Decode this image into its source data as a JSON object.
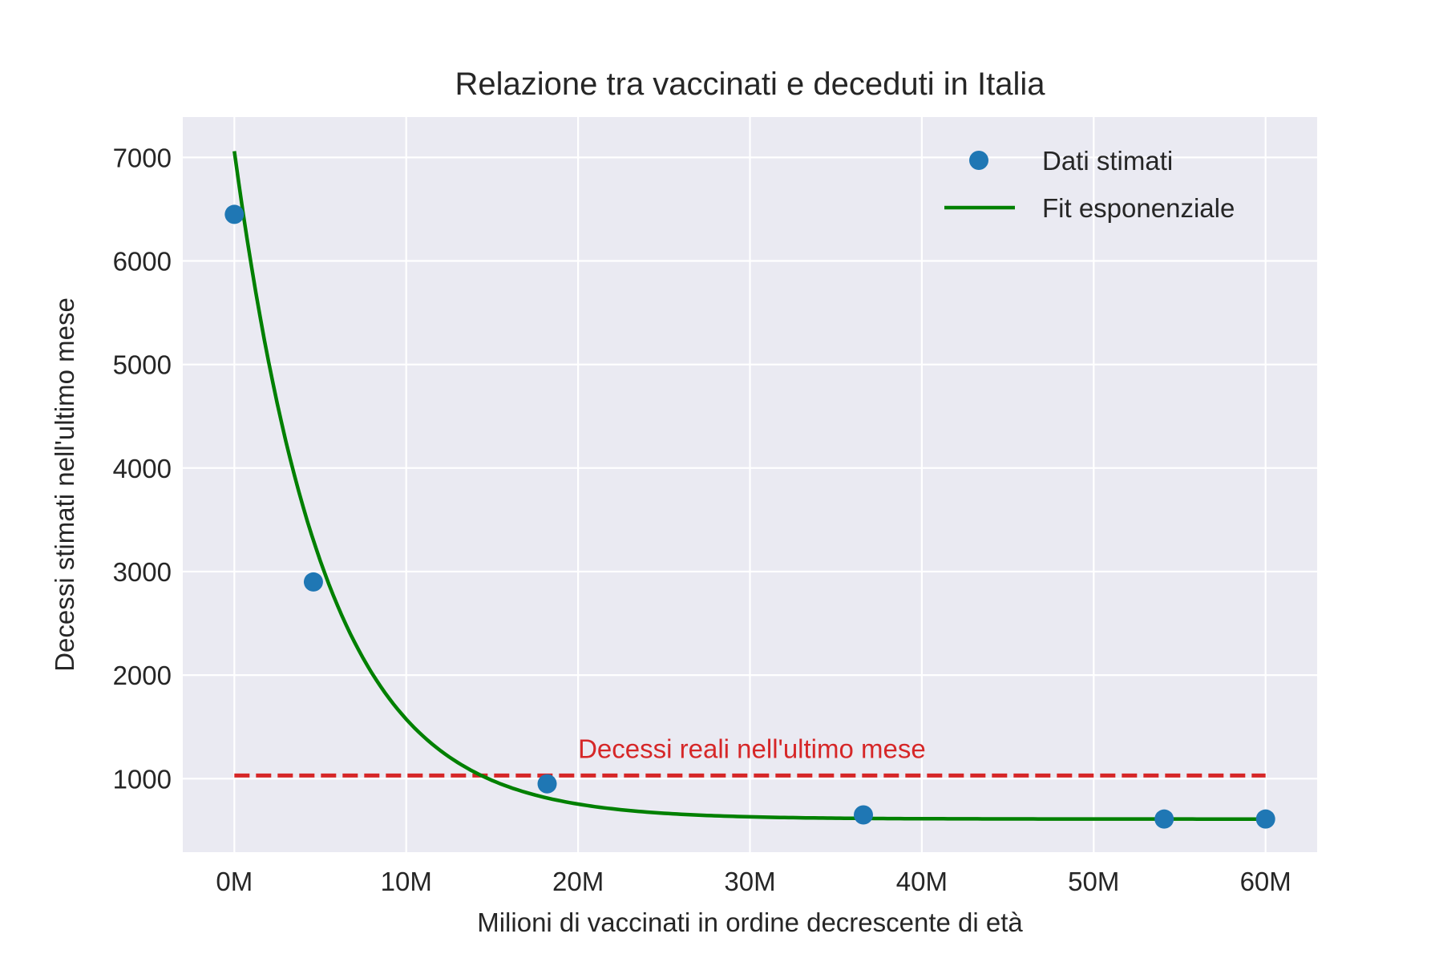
{
  "chart_data": {
    "type": "scatter",
    "title": "Relazione tra vaccinati e deceduti in Italia",
    "xlabel": "Milioni di vaccinati in ordine decrescente di età",
    "ylabel": "Decessi stimati nell'ultimo mese",
    "xlim": [
      -3,
      63
    ],
    "ylim": [
      290,
      7390
    ],
    "x_ticks": [
      0,
      10,
      20,
      30,
      40,
      50,
      60
    ],
    "x_tick_labels": [
      "0M",
      "10M",
      "20M",
      "30M",
      "40M",
      "50M",
      "60M"
    ],
    "y_ticks": [
      1000,
      2000,
      3000,
      4000,
      5000,
      6000,
      7000
    ],
    "y_tick_labels": [
      "1000",
      "2000",
      "3000",
      "4000",
      "5000",
      "6000",
      "7000"
    ],
    "grid": true,
    "legend_position": "top-right",
    "series": [
      {
        "name": "Dati stimati",
        "kind": "scatter",
        "color": "#1f77b4",
        "x": [
          0,
          4.6,
          18.2,
          36.6,
          54.1,
          60.0
        ],
        "y": [
          6450,
          2900,
          950,
          650,
          610,
          610
        ]
      },
      {
        "name": "Fit esponenziale",
        "kind": "line",
        "color": "#008000",
        "model": {
          "a": 6450,
          "b": 0.19,
          "c": 610
        },
        "x_range": [
          0,
          60
        ]
      }
    ],
    "reference_line": {
      "y": 1030,
      "x_range": [
        0,
        60
      ],
      "color": "#d62728",
      "style": "dashed",
      "label": "Decessi reali nell'ultimo mese",
      "label_x": 20,
      "label_y": 1200
    },
    "colors": {
      "plot_background": "#eaeaf2",
      "grid": "#ffffff",
      "text": "#262626"
    }
  }
}
